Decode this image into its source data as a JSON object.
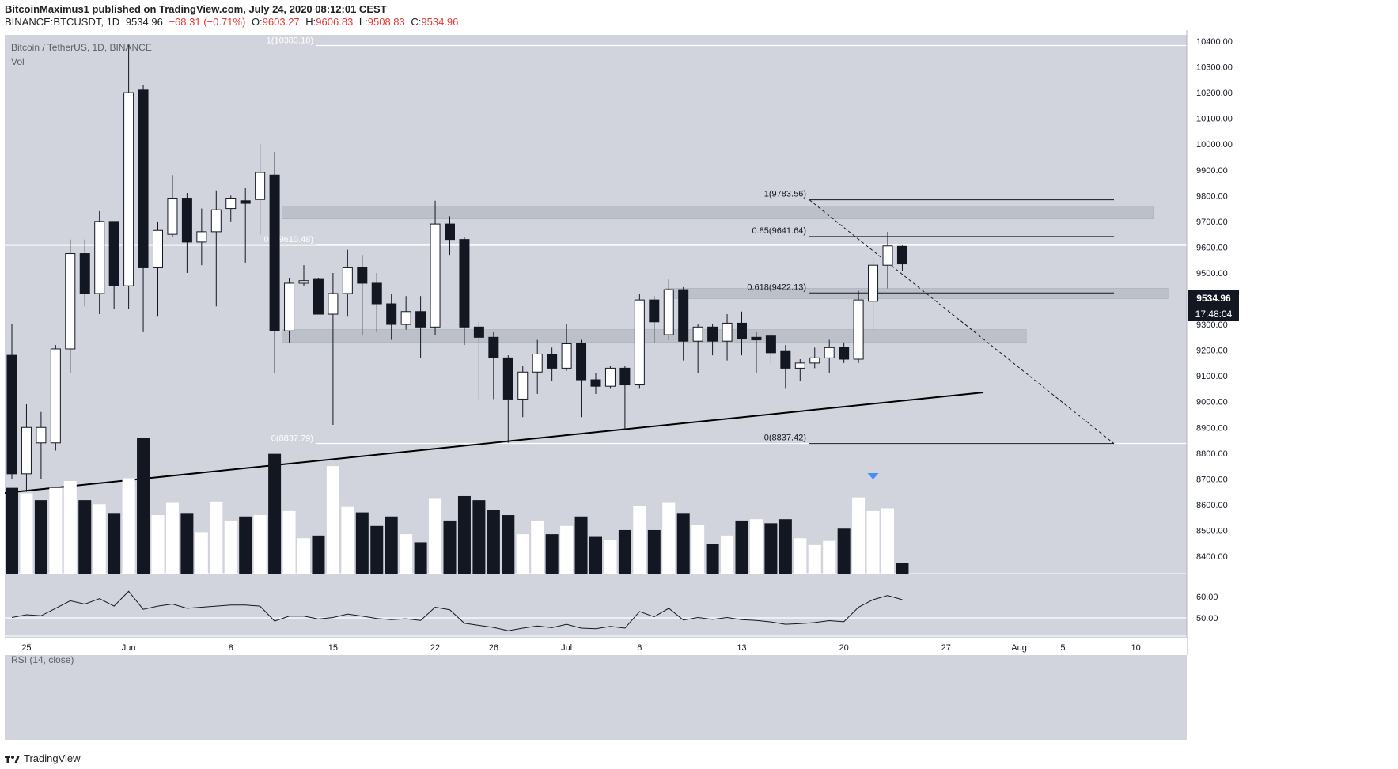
{
  "header": {
    "line1": "BitcoinMaximus1 published on TradingView.com, July 24, 2020 08:12:01 CEST",
    "symbol": "BINANCE:BTCUSDT, 1D",
    "last": "9534.96",
    "change": "−68.31 (−0.71%)",
    "o_label": "O:",
    "o": "9603.27",
    "h_label": "H:",
    "h": "9606.83",
    "l_label": "L:",
    "l": "9508.83",
    "c_label": "C:",
    "c": "9534.96"
  },
  "pane": {
    "title": "Bitcoin / TetherUS, 1D, BINANCE",
    "vol_label": "Vol",
    "rsi_label": "RSI (14, close)"
  },
  "price_tag": {
    "value": "9534.96",
    "countdown": "17:48:04"
  },
  "footer": {
    "brand": "TradingView"
  },
  "colors": {
    "background": "#d1d4dc",
    "bull": "#ffffff",
    "bear": "#131722",
    "zone": "#b8bcc6",
    "arrow": "#4a8cf7"
  },
  "chart_data": {
    "type": "candlestick",
    "title": "Bitcoin / TetherUS, 1D, BINANCE",
    "y_ticks": [
      "10400.00",
      "10300.00",
      "10200.00",
      "10100.00",
      "10000.00",
      "9900.00",
      "9800.00",
      "9700.00",
      "9600.00",
      "9500.00",
      "9400.00",
      "9300.00",
      "9200.00",
      "9100.00",
      "9000.00",
      "8900.00",
      "8800.00",
      "8700.00",
      "8600.00",
      "8500.00",
      "8400.00"
    ],
    "ylim": [
      8310,
      10460
    ],
    "rsi_ticks": [
      "60.00",
      "50.00"
    ],
    "x_ticks": [
      {
        "label": "25",
        "i": 1
      },
      {
        "label": "Jun",
        "i": 8
      },
      {
        "label": "8",
        "i": 15
      },
      {
        "label": "15",
        "i": 22
      },
      {
        "label": "22",
        "i": 29
      },
      {
        "label": "26",
        "i": 33
      },
      {
        "label": "Jul",
        "i": 38
      },
      {
        "label": "6",
        "i": 43
      },
      {
        "label": "13",
        "i": 50
      },
      {
        "label": "20",
        "i": 57
      },
      {
        "label": "27",
        "i": 64
      },
      {
        "label": "Aug",
        "i": 69
      },
      {
        "label": "5",
        "i": 72
      },
      {
        "label": "10",
        "i": 77
      }
    ],
    "candles": [
      {
        "o": 9180,
        "h": 9300,
        "l": 8700,
        "c": 8720
      },
      {
        "o": 8720,
        "h": 8990,
        "l": 8650,
        "c": 8900
      },
      {
        "o": 8840,
        "h": 8960,
        "l": 8700,
        "c": 8900
      },
      {
        "o": 8840,
        "h": 9220,
        "l": 8810,
        "c": 9205
      },
      {
        "o": 9205,
        "h": 9630,
        "l": 9110,
        "c": 9575
      },
      {
        "o": 9575,
        "h": 9630,
        "l": 9370,
        "c": 9420
      },
      {
        "o": 9420,
        "h": 9740,
        "l": 9340,
        "c": 9700
      },
      {
        "o": 9700,
        "h": 9700,
        "l": 9360,
        "c": 9450
      },
      {
        "o": 9450,
        "h": 10390,
        "l": 9360,
        "c": 10200
      },
      {
        "o": 10210,
        "h": 10230,
        "l": 9270,
        "c": 9520
      },
      {
        "o": 9520,
        "h": 9700,
        "l": 9330,
        "c": 9665
      },
      {
        "o": 9650,
        "h": 9880,
        "l": 9640,
        "c": 9790
      },
      {
        "o": 9790,
        "h": 9810,
        "l": 9500,
        "c": 9620
      },
      {
        "o": 9620,
        "h": 9750,
        "l": 9530,
        "c": 9660
      },
      {
        "o": 9660,
        "h": 9820,
        "l": 9370,
        "c": 9745
      },
      {
        "o": 9750,
        "h": 9800,
        "l": 9700,
        "c": 9790
      },
      {
        "o": 9780,
        "h": 9830,
        "l": 9540,
        "c": 9770
      },
      {
        "o": 9785,
        "h": 10000,
        "l": 9650,
        "c": 9890
      },
      {
        "o": 9880,
        "h": 9970,
        "l": 9110,
        "c": 9275
      },
      {
        "o": 9275,
        "h": 9480,
        "l": 9230,
        "c": 9460
      },
      {
        "o": 9460,
        "h": 9530,
        "l": 9450,
        "c": 9470
      },
      {
        "o": 9475,
        "h": 9480,
        "l": 9340,
        "c": 9340
      },
      {
        "o": 9340,
        "h": 9500,
        "l": 8910,
        "c": 9420
      },
      {
        "o": 9420,
        "h": 9590,
        "l": 9330,
        "c": 9520
      },
      {
        "o": 9520,
        "h": 9570,
        "l": 9260,
        "c": 9460
      },
      {
        "o": 9460,
        "h": 9500,
        "l": 9270,
        "c": 9380
      },
      {
        "o": 9380,
        "h": 9420,
        "l": 9240,
        "c": 9300
      },
      {
        "o": 9300,
        "h": 9410,
        "l": 9280,
        "c": 9350
      },
      {
        "o": 9350,
        "h": 9410,
        "l": 9170,
        "c": 9290
      },
      {
        "o": 9290,
        "h": 9780,
        "l": 9260,
        "c": 9690
      },
      {
        "o": 9690,
        "h": 9720,
        "l": 9570,
        "c": 9630
      },
      {
        "o": 9630,
        "h": 9640,
        "l": 9220,
        "c": 9290
      },
      {
        "o": 9290,
        "h": 9310,
        "l": 9010,
        "c": 9250
      },
      {
        "o": 9250,
        "h": 9270,
        "l": 9010,
        "c": 9170
      },
      {
        "o": 9170,
        "h": 9180,
        "l": 8840,
        "c": 9010
      },
      {
        "o": 9010,
        "h": 9140,
        "l": 8940,
        "c": 9115
      },
      {
        "o": 9115,
        "h": 9240,
        "l": 9030,
        "c": 9185
      },
      {
        "o": 9185,
        "h": 9210,
        "l": 9080,
        "c": 9130
      },
      {
        "o": 9130,
        "h": 9300,
        "l": 9120,
        "c": 9225
      },
      {
        "o": 9225,
        "h": 9240,
        "l": 8940,
        "c": 9085
      },
      {
        "o": 9085,
        "h": 9110,
        "l": 9030,
        "c": 9060
      },
      {
        "o": 9060,
        "h": 9140,
        "l": 9050,
        "c": 9130
      },
      {
        "o": 9130,
        "h": 9140,
        "l": 8890,
        "c": 9065
      },
      {
        "o": 9065,
        "h": 9420,
        "l": 9050,
        "c": 9395
      },
      {
        "o": 9395,
        "h": 9410,
        "l": 9230,
        "c": 9310
      },
      {
        "o": 9260,
        "h": 9475,
        "l": 9240,
        "c": 9435
      },
      {
        "o": 9435,
        "h": 9445,
        "l": 9160,
        "c": 9235
      },
      {
        "o": 9235,
        "h": 9300,
        "l": 9110,
        "c": 9290
      },
      {
        "o": 9290,
        "h": 9300,
        "l": 9180,
        "c": 9235
      },
      {
        "o": 9235,
        "h": 9340,
        "l": 9160,
        "c": 9305
      },
      {
        "o": 9305,
        "h": 9350,
        "l": 9180,
        "c": 9245
      },
      {
        "o": 9250,
        "h": 9270,
        "l": 9110,
        "c": 9240
      },
      {
        "o": 9255,
        "h": 9260,
        "l": 9150,
        "c": 9190
      },
      {
        "o": 9195,
        "h": 9220,
        "l": 9050,
        "c": 9130
      },
      {
        "o": 9130,
        "h": 9165,
        "l": 9080,
        "c": 9150
      },
      {
        "o": 9150,
        "h": 9210,
        "l": 9130,
        "c": 9170
      },
      {
        "o": 9170,
        "h": 9240,
        "l": 9110,
        "c": 9210
      },
      {
        "o": 9210,
        "h": 9230,
        "l": 9150,
        "c": 9165
      },
      {
        "o": 9165,
        "h": 9430,
        "l": 9150,
        "c": 9395
      },
      {
        "o": 9390,
        "h": 9560,
        "l": 9270,
        "c": 9530
      },
      {
        "o": 9530,
        "h": 9660,
        "l": 9440,
        "c": 9605
      },
      {
        "o": 9603.27,
        "h": 9606.83,
        "l": 9508.83,
        "c": 9534.96
      }
    ],
    "volume": [
      {
        "v": 0.63,
        "bull": false
      },
      {
        "v": 0.59,
        "bull": true
      },
      {
        "v": 0.54,
        "bull": false
      },
      {
        "v": 0.63,
        "bull": true
      },
      {
        "v": 0.68,
        "bull": true
      },
      {
        "v": 0.54,
        "bull": false
      },
      {
        "v": 0.51,
        "bull": true
      },
      {
        "v": 0.44,
        "bull": false
      },
      {
        "v": 0.7,
        "bull": true
      },
      {
        "v": 1.0,
        "bull": false
      },
      {
        "v": 0.43,
        "bull": true
      },
      {
        "v": 0.52,
        "bull": true
      },
      {
        "v": 0.44,
        "bull": false
      },
      {
        "v": 0.3,
        "bull": true
      },
      {
        "v": 0.53,
        "bull": true
      },
      {
        "v": 0.39,
        "bull": true
      },
      {
        "v": 0.42,
        "bull": false
      },
      {
        "v": 0.43,
        "bull": true
      },
      {
        "v": 0.88,
        "bull": false
      },
      {
        "v": 0.46,
        "bull": true
      },
      {
        "v": 0.26,
        "bull": true
      },
      {
        "v": 0.28,
        "bull": false
      },
      {
        "v": 0.79,
        "bull": true
      },
      {
        "v": 0.49,
        "bull": true
      },
      {
        "v": 0.45,
        "bull": false
      },
      {
        "v": 0.35,
        "bull": false
      },
      {
        "v": 0.42,
        "bull": false
      },
      {
        "v": 0.29,
        "bull": true
      },
      {
        "v": 0.23,
        "bull": false
      },
      {
        "v": 0.55,
        "bull": true
      },
      {
        "v": 0.39,
        "bull": false
      },
      {
        "v": 0.57,
        "bull": false
      },
      {
        "v": 0.54,
        "bull": false
      },
      {
        "v": 0.47,
        "bull": false
      },
      {
        "v": 0.43,
        "bull": false
      },
      {
        "v": 0.29,
        "bull": true
      },
      {
        "v": 0.39,
        "bull": true
      },
      {
        "v": 0.29,
        "bull": false
      },
      {
        "v": 0.35,
        "bull": true
      },
      {
        "v": 0.42,
        "bull": false
      },
      {
        "v": 0.27,
        "bull": false
      },
      {
        "v": 0.25,
        "bull": true
      },
      {
        "v": 0.32,
        "bull": false
      },
      {
        "v": 0.5,
        "bull": true
      },
      {
        "v": 0.32,
        "bull": false
      },
      {
        "v": 0.52,
        "bull": true
      },
      {
        "v": 0.44,
        "bull": false
      },
      {
        "v": 0.36,
        "bull": true
      },
      {
        "v": 0.22,
        "bull": false
      },
      {
        "v": 0.28,
        "bull": true
      },
      {
        "v": 0.39,
        "bull": false
      },
      {
        "v": 0.4,
        "bull": true
      },
      {
        "v": 0.37,
        "bull": false
      },
      {
        "v": 0.4,
        "bull": false
      },
      {
        "v": 0.26,
        "bull": true
      },
      {
        "v": 0.21,
        "bull": true
      },
      {
        "v": 0.24,
        "bull": true
      },
      {
        "v": 0.33,
        "bull": false
      },
      {
        "v": 0.56,
        "bull": true
      },
      {
        "v": 0.46,
        "bull": true
      },
      {
        "v": 0.48,
        "bull": true
      },
      {
        "v": 0.08,
        "bull": false
      }
    ],
    "rsi": [
      50.2,
      51.5,
      51,
      54.5,
      58,
      56.5,
      59,
      55.5,
      62.5,
      54,
      55.5,
      56.5,
      54.5,
      55,
      55.5,
      56,
      56,
      55.5,
      48.5,
      50.8,
      50.8,
      49.5,
      50.2,
      51.8,
      50.8,
      49.7,
      49.2,
      49.6,
      48.8,
      55,
      53.8,
      47.5,
      46.5,
      45.5,
      44,
      45.2,
      46.2,
      45.4,
      47,
      45.2,
      44.9,
      46,
      45.2,
      53,
      50.5,
      54.5,
      49,
      50.2,
      49.3,
      50.2,
      49.2,
      48.8,
      48.1,
      47,
      47.3,
      47.8,
      48.7,
      48.2,
      55,
      58.5,
      60.5,
      58.5
    ],
    "fib_left": [
      {
        "label": "1(10383.18)",
        "price": 10383.18
      },
      {
        "label": "0.5(9610.48)",
        "price": 9610.48
      },
      {
        "label": "0(8837.79)",
        "price": 8837.79
      }
    ],
    "fib_right": [
      {
        "label": "1(9783.56)",
        "price": 9783.56
      },
      {
        "label": "0.85(9641.64)",
        "price": 9641.64
      },
      {
        "label": "0.618(9422.13)",
        "price": 9422.13
      },
      {
        "label": "0(8837.42)",
        "price": 8837.42
      }
    ],
    "zones": [
      {
        "i0": 18.5,
        "i1": 78.2,
        "top": 9760,
        "bot": 9710
      },
      {
        "i0": 44.8,
        "i1": 79.2,
        "top": 9440,
        "bot": 9400
      },
      {
        "i0": 18.5,
        "i1": 69.5,
        "top": 9280,
        "bot": 9230
      }
    ]
  }
}
